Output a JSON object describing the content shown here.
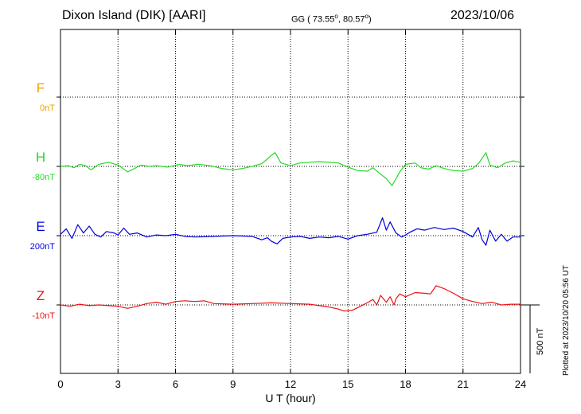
{
  "header": {
    "station": "Dixon Island (DIK)  [AARI]",
    "coords": "GG ( 73.55",
    "coords_deg1": "o",
    "coords_mid": ",  80.57",
    "coords_deg2": "o",
    "coords_end": ")",
    "date": "2023/10/06"
  },
  "footer": {
    "plotted": "Plotted at 2023/10/20 05:56 UT"
  },
  "scale_bar": {
    "label": "500 nT",
    "value": 500
  },
  "chart_data": {
    "type": "line",
    "xlabel": "U T (hour)",
    "xlim": [
      0,
      24
    ],
    "xticks": [
      "0",
      "3",
      "6",
      "9",
      "12",
      "15",
      "18",
      "21",
      "24"
    ],
    "y_unit": "nT",
    "series": [
      {
        "name": "F",
        "baseline": "0nT",
        "color": "#f0a000",
        "points": []
      },
      {
        "name": "H",
        "baseline": "-80nT",
        "color": "#22dd22",
        "points": [
          [
            0,
            0
          ],
          [
            0.4,
            5
          ],
          [
            0.7,
            -10
          ],
          [
            1.0,
            15
          ],
          [
            1.3,
            5
          ],
          [
            1.6,
            -25
          ],
          [
            2.0,
            15
          ],
          [
            2.5,
            30
          ],
          [
            3.0,
            10
          ],
          [
            3.3,
            -20
          ],
          [
            3.5,
            -40
          ],
          [
            3.8,
            -20
          ],
          [
            4.2,
            10
          ],
          [
            4.6,
            0
          ],
          [
            5.0,
            5
          ],
          [
            5.6,
            -5
          ],
          [
            6.2,
            15
          ],
          [
            6.6,
            5
          ],
          [
            7.2,
            15
          ],
          [
            7.8,
            5
          ],
          [
            8.4,
            -15
          ],
          [
            9.0,
            -25
          ],
          [
            9.5,
            -15
          ],
          [
            10.0,
            0
          ],
          [
            10.5,
            20
          ],
          [
            10.8,
            55
          ],
          [
            11.0,
            80
          ],
          [
            11.2,
            100
          ],
          [
            11.5,
            25
          ],
          [
            12.0,
            5
          ],
          [
            12.5,
            25
          ],
          [
            13.5,
            35
          ],
          [
            14.5,
            25
          ],
          [
            15.0,
            -5
          ],
          [
            15.5,
            -30
          ],
          [
            16.0,
            -35
          ],
          [
            16.3,
            -10
          ],
          [
            16.6,
            -45
          ],
          [
            17.0,
            -90
          ],
          [
            17.3,
            -140
          ],
          [
            17.5,
            -90
          ],
          [
            17.7,
            -40
          ],
          [
            18.0,
            15
          ],
          [
            18.5,
            25
          ],
          [
            18.8,
            -10
          ],
          [
            19.2,
            -20
          ],
          [
            19.6,
            5
          ],
          [
            20.0,
            -15
          ],
          [
            20.5,
            -30
          ],
          [
            21.0,
            -35
          ],
          [
            21.5,
            -15
          ],
          [
            21.8,
            20
          ],
          [
            22.0,
            60
          ],
          [
            22.2,
            100
          ],
          [
            22.4,
            10
          ],
          [
            22.8,
            -10
          ],
          [
            23.2,
            25
          ],
          [
            23.6,
            40
          ],
          [
            24,
            30
          ]
        ]
      },
      {
        "name": "E",
        "baseline": "200nT",
        "color": "#0000dd",
        "points": [
          [
            0,
            10
          ],
          [
            0.3,
            50
          ],
          [
            0.6,
            -20
          ],
          [
            0.9,
            80
          ],
          [
            1.2,
            20
          ],
          [
            1.5,
            70
          ],
          [
            1.8,
            10
          ],
          [
            2.1,
            -10
          ],
          [
            2.4,
            30
          ],
          [
            2.8,
            20
          ],
          [
            3.0,
            5
          ],
          [
            3.3,
            55
          ],
          [
            3.6,
            10
          ],
          [
            4.0,
            20
          ],
          [
            4.5,
            -10
          ],
          [
            5.0,
            5
          ],
          [
            5.5,
            0
          ],
          [
            6.0,
            10
          ],
          [
            6.5,
            -5
          ],
          [
            7.0,
            -10
          ],
          [
            8.0,
            -5
          ],
          [
            9.0,
            0
          ],
          [
            10.0,
            -5
          ],
          [
            10.5,
            -30
          ],
          [
            10.8,
            -15
          ],
          [
            11.0,
            -40
          ],
          [
            11.3,
            -60
          ],
          [
            11.6,
            -20
          ],
          [
            12.0,
            -10
          ],
          [
            12.5,
            -5
          ],
          [
            13.0,
            -20
          ],
          [
            13.5,
            -10
          ],
          [
            14.0,
            -15
          ],
          [
            14.5,
            -5
          ],
          [
            15.0,
            -25
          ],
          [
            15.5,
            0
          ],
          [
            16.0,
            10
          ],
          [
            16.5,
            25
          ],
          [
            16.8,
            130
          ],
          [
            17.0,
            40
          ],
          [
            17.2,
            100
          ],
          [
            17.5,
            20
          ],
          [
            17.8,
            -10
          ],
          [
            18.0,
            5
          ],
          [
            18.3,
            30
          ],
          [
            18.6,
            50
          ],
          [
            19.0,
            40
          ],
          [
            19.5,
            60
          ],
          [
            20.0,
            45
          ],
          [
            20.5,
            55
          ],
          [
            21.0,
            30
          ],
          [
            21.5,
            -10
          ],
          [
            21.8,
            60
          ],
          [
            22.0,
            -30
          ],
          [
            22.2,
            -70
          ],
          [
            22.4,
            40
          ],
          [
            22.7,
            -40
          ],
          [
            23.0,
            10
          ],
          [
            23.3,
            -40
          ],
          [
            23.6,
            -10
          ],
          [
            24,
            -10
          ]
        ]
      },
      {
        "name": "Z",
        "baseline": "-10nT",
        "color": "#ee1111",
        "points": [
          [
            0,
            0
          ],
          [
            0.5,
            -10
          ],
          [
            1.0,
            5
          ],
          [
            1.5,
            -5
          ],
          [
            2.0,
            0
          ],
          [
            2.5,
            -5
          ],
          [
            3.0,
            -10
          ],
          [
            3.5,
            -25
          ],
          [
            4.0,
            -10
          ],
          [
            4.5,
            10
          ],
          [
            5.0,
            20
          ],
          [
            5.5,
            5
          ],
          [
            6.0,
            25
          ],
          [
            6.5,
            30
          ],
          [
            7.0,
            25
          ],
          [
            7.5,
            30
          ],
          [
            8.0,
            10
          ],
          [
            9.0,
            5
          ],
          [
            10.0,
            10
          ],
          [
            11.0,
            15
          ],
          [
            12.0,
            10
          ],
          [
            13.0,
            5
          ],
          [
            13.5,
            -5
          ],
          [
            14.0,
            -15
          ],
          [
            14.5,
            -30
          ],
          [
            14.8,
            -45
          ],
          [
            15.2,
            -40
          ],
          [
            15.5,
            -20
          ],
          [
            16.0,
            15
          ],
          [
            16.3,
            40
          ],
          [
            16.5,
            0
          ],
          [
            16.7,
            70
          ],
          [
            17.0,
            20
          ],
          [
            17.2,
            60
          ],
          [
            17.4,
            0
          ],
          [
            17.5,
            45
          ],
          [
            17.7,
            80
          ],
          [
            18.0,
            60
          ],
          [
            18.5,
            90
          ],
          [
            19.0,
            85
          ],
          [
            19.3,
            80
          ],
          [
            19.6,
            140
          ],
          [
            20.0,
            120
          ],
          [
            20.5,
            85
          ],
          [
            21.0,
            45
          ],
          [
            21.5,
            25
          ],
          [
            22.0,
            10
          ],
          [
            22.5,
            20
          ],
          [
            23.0,
            0
          ],
          [
            23.5,
            5
          ],
          [
            24,
            5
          ]
        ]
      }
    ]
  }
}
